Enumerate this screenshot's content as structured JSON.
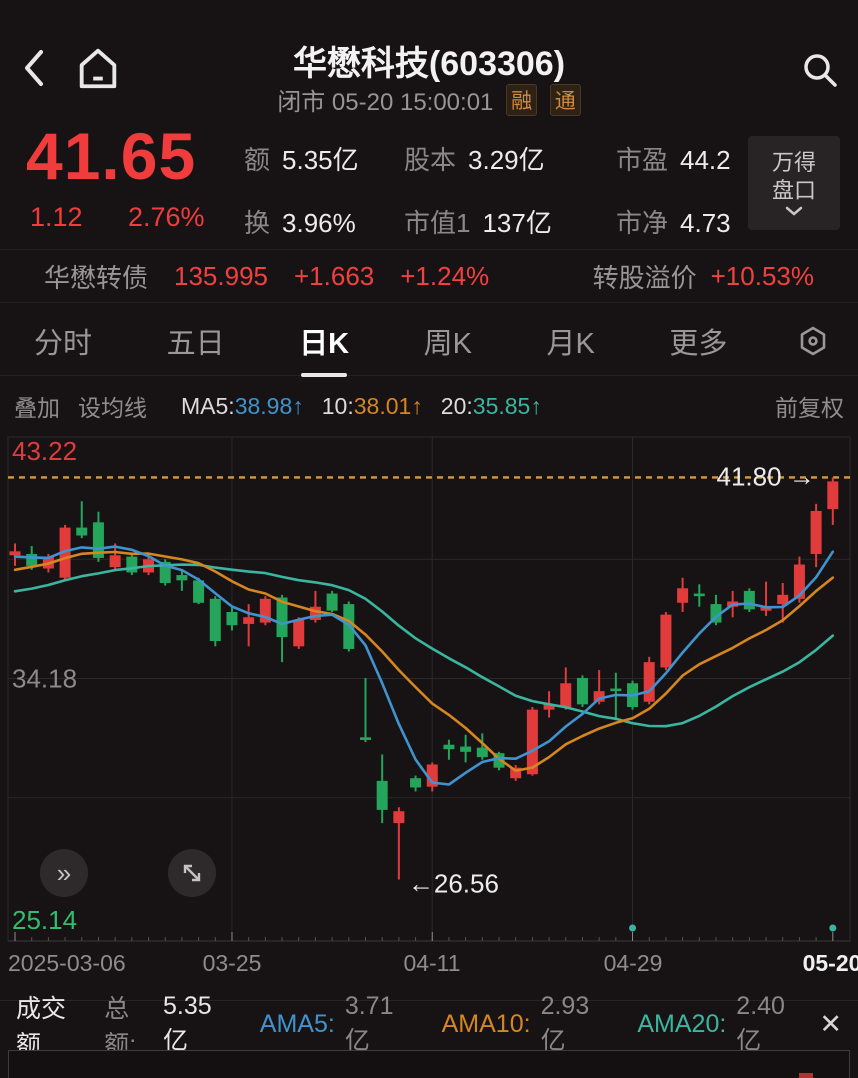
{
  "header": {
    "title": "华懋科技(603306)",
    "status": "闭市",
    "datetime": "05-20 15:00:01",
    "badges": [
      "融",
      "通"
    ]
  },
  "quote": {
    "price": "41.65",
    "change": "1.12",
    "change_pct": "2.76%",
    "stats": [
      {
        "label": "额",
        "value": "5.35亿"
      },
      {
        "label": "股本",
        "value": "3.29亿"
      },
      {
        "label": "市盈",
        "value": "44.2"
      },
      {
        "label": "换",
        "value": "3.96%"
      },
      {
        "label": "市值1",
        "value": "137亿"
      },
      {
        "label": "市净",
        "value": "4.73"
      }
    ],
    "panel_button": {
      "line1": "万得",
      "line2": "盘口"
    }
  },
  "bond": {
    "name": "华懋转债",
    "price": "135.995",
    "change": "+1.663",
    "change_pct": "+1.24%",
    "premium_label": "转股溢价",
    "premium_value": "+10.53%"
  },
  "tabs": {
    "items": [
      "分时",
      "五日",
      "日K",
      "周K",
      "月K",
      "更多"
    ],
    "active": "日K"
  },
  "ma_bar": {
    "overlay": "叠加",
    "set_ma": "设均线",
    "ma5_label": "MA5:",
    "ma5": "38.98↑",
    "ma10_label": "10:",
    "ma10": "38.01↑",
    "ma20_label": "20:",
    "ma20": "35.85↑",
    "adjust": "前复权"
  },
  "icons": {
    "double_chevron": "»",
    "close": "✕"
  },
  "colors": {
    "up": "#e23b3b",
    "down": "#23a55c",
    "ma5": "#3f93cf",
    "ma10": "#d5861f",
    "ma20": "#3ab5a0",
    "dashed": "#d79a3c",
    "grid": "#2b2829",
    "accent_red": "#f03c3c",
    "green_label": "#2fbe6d",
    "gray_label": "#8c898a",
    "white_label": "#ececec"
  },
  "chart_data": {
    "type": "candlestick",
    "title": "华懋科技(603306) 日K",
    "y_max": 43.22,
    "y_min": 25.14,
    "labels": {
      "top": "43.22",
      "mid": "34.18",
      "bottom": "25.14",
      "high_line": "41.80 →",
      "low_callout": "←26.56"
    },
    "high_line_value": 41.8,
    "low_value": 26.56,
    "low_index": 23,
    "mid_value": 34.18,
    "grid_prices": [
      38.7,
      34.18,
      29.66
    ],
    "grid_indices": [
      13,
      25,
      37
    ],
    "x_ticks": [
      {
        "label": "2025-03-06",
        "index": 0
      },
      {
        "label": "03-25",
        "index": 13
      },
      {
        "label": "04-11",
        "index": 25
      },
      {
        "label": "04-29",
        "index": 37
      },
      {
        "label": "05-20",
        "index": 49
      }
    ],
    "event_dots": [
      37,
      49
    ],
    "history_closes": [
      36.2,
      36.4,
      36.1,
      36.3,
      36.5,
      36.6,
      36.4,
      36.8,
      37.0,
      37.2,
      37.4,
      37.3,
      37.6,
      37.8,
      38.0,
      38.3,
      38.6,
      38.9,
      38.6,
      38.9
    ],
    "candles": [
      {
        "date": "03-06",
        "o": 38.85,
        "h": 39.3,
        "l": 38.45,
        "c": 39.0
      },
      {
        "date": "03-07",
        "o": 38.9,
        "h": 39.2,
        "l": 38.3,
        "c": 38.45
      },
      {
        "date": "03-10",
        "o": 38.35,
        "h": 38.9,
        "l": 38.2,
        "c": 38.8
      },
      {
        "date": "03-11",
        "o": 38.0,
        "h": 40.0,
        "l": 37.9,
        "c": 39.9
      },
      {
        "date": "03-12",
        "o": 39.9,
        "h": 40.9,
        "l": 39.5,
        "c": 39.6
      },
      {
        "date": "03-13",
        "o": 40.1,
        "h": 40.5,
        "l": 38.6,
        "c": 38.75
      },
      {
        "date": "03-14",
        "o": 38.4,
        "h": 39.3,
        "l": 38.3,
        "c": 38.85
      },
      {
        "date": "03-17",
        "o": 38.8,
        "h": 38.9,
        "l": 38.1,
        "c": 38.2
      },
      {
        "date": "03-18",
        "o": 38.2,
        "h": 38.8,
        "l": 38.1,
        "c": 38.7
      },
      {
        "date": "03-19",
        "o": 38.6,
        "h": 38.7,
        "l": 37.7,
        "c": 37.8
      },
      {
        "date": "03-20",
        "o": 38.1,
        "h": 38.3,
        "l": 37.5,
        "c": 37.9
      },
      {
        "date": "03-21",
        "o": 37.9,
        "h": 38.0,
        "l": 37.0,
        "c": 37.05
      },
      {
        "date": "03-24",
        "o": 37.2,
        "h": 37.3,
        "l": 35.4,
        "c": 35.6
      },
      {
        "date": "03-25",
        "o": 36.7,
        "h": 36.9,
        "l": 36.0,
        "c": 36.2
      },
      {
        "date": "03-26",
        "o": 36.25,
        "h": 37.0,
        "l": 35.4,
        "c": 36.5
      },
      {
        "date": "03-27",
        "o": 36.3,
        "h": 37.3,
        "l": 36.2,
        "c": 37.2
      },
      {
        "date": "03-28",
        "o": 37.25,
        "h": 37.35,
        "l": 34.8,
        "c": 35.75
      },
      {
        "date": "03-31",
        "o": 35.4,
        "h": 36.5,
        "l": 35.3,
        "c": 36.4
      },
      {
        "date": "04-01",
        "o": 36.4,
        "h": 37.5,
        "l": 36.3,
        "c": 36.9
      },
      {
        "date": "04-02",
        "o": 37.4,
        "h": 37.5,
        "l": 36.7,
        "c": 36.75
      },
      {
        "date": "04-03",
        "o": 37.0,
        "h": 37.1,
        "l": 35.2,
        "c": 35.3
      },
      {
        "date": "04-07",
        "o": 31.95,
        "h": 34.2,
        "l": 31.77,
        "c": 31.85
      },
      {
        "date": "04-08",
        "o": 30.3,
        "h": 31.3,
        "l": 28.7,
        "c": 29.2
      },
      {
        "date": "04-09",
        "o": 28.7,
        "h": 29.3,
        "l": 26.56,
        "c": 29.15
      },
      {
        "date": "04-10",
        "o": 30.4,
        "h": 30.5,
        "l": 29.9,
        "c": 30.05
      },
      {
        "date": "04-11",
        "o": 30.08,
        "h": 31.0,
        "l": 29.9,
        "c": 30.92
      },
      {
        "date": "04-14",
        "o": 31.67,
        "h": 31.86,
        "l": 31.1,
        "c": 31.5
      },
      {
        "date": "04-15",
        "o": 31.6,
        "h": 32.05,
        "l": 31.0,
        "c": 31.4
      },
      {
        "date": "04-16",
        "o": 31.56,
        "h": 32.1,
        "l": 31.1,
        "c": 31.2
      },
      {
        "date": "04-17",
        "o": 31.35,
        "h": 31.4,
        "l": 30.7,
        "c": 30.8
      },
      {
        "date": "04-18",
        "o": 30.4,
        "h": 30.9,
        "l": 30.3,
        "c": 30.8
      },
      {
        "date": "04-21",
        "o": 30.55,
        "h": 33.1,
        "l": 30.5,
        "c": 33.0
      },
      {
        "date": "04-22",
        "o": 33.0,
        "h": 33.7,
        "l": 32.7,
        "c": 33.2
      },
      {
        "date": "04-23",
        "o": 33.1,
        "h": 34.6,
        "l": 33.0,
        "c": 34.0
      },
      {
        "date": "04-24",
        "o": 34.2,
        "h": 34.3,
        "l": 33.1,
        "c": 33.2
      },
      {
        "date": "04-25",
        "o": 33.3,
        "h": 34.5,
        "l": 33.2,
        "c": 33.7
      },
      {
        "date": "04-28",
        "o": 33.8,
        "h": 34.4,
        "l": 32.6,
        "c": 33.7
      },
      {
        "date": "04-29",
        "o": 34.0,
        "h": 34.1,
        "l": 33.0,
        "c": 33.1
      },
      {
        "date": "04-30",
        "o": 33.3,
        "h": 35.0,
        "l": 33.2,
        "c": 34.8
      },
      {
        "date": "05-06",
        "o": 34.6,
        "h": 36.7,
        "l": 34.5,
        "c": 36.6
      },
      {
        "date": "05-07",
        "o": 37.05,
        "h": 38.0,
        "l": 36.7,
        "c": 37.6
      },
      {
        "date": "05-08",
        "o": 37.4,
        "h": 37.75,
        "l": 36.9,
        "c": 37.3
      },
      {
        "date": "05-09",
        "o": 37.0,
        "h": 37.35,
        "l": 36.2,
        "c": 36.3
      },
      {
        "date": "05-12",
        "o": 36.9,
        "h": 37.5,
        "l": 36.5,
        "c": 37.1
      },
      {
        "date": "05-13",
        "o": 37.5,
        "h": 37.6,
        "l": 36.7,
        "c": 36.8
      },
      {
        "date": "05-14",
        "o": 36.75,
        "h": 37.85,
        "l": 36.55,
        "c": 36.9
      },
      {
        "date": "05-15",
        "o": 37.0,
        "h": 37.8,
        "l": 36.3,
        "c": 37.35
      },
      {
        "date": "05-16",
        "o": 37.2,
        "h": 38.8,
        "l": 37.05,
        "c": 38.5
      },
      {
        "date": "05-19",
        "o": 38.9,
        "h": 40.8,
        "l": 38.4,
        "c": 40.53
      },
      {
        "date": "05-20",
        "o": 40.6,
        "h": 41.8,
        "l": 40.0,
        "c": 41.65
      }
    ]
  },
  "footer": {
    "title": "成交额",
    "total_label": "总额:",
    "total": "5.35亿",
    "ama5_label": "AMA5:",
    "ama5": "3.71亿",
    "ama10_label": "AMA10:",
    "ama10": "2.93亿",
    "ama20_label": "AMA20:",
    "ama20": "2.40亿"
  }
}
